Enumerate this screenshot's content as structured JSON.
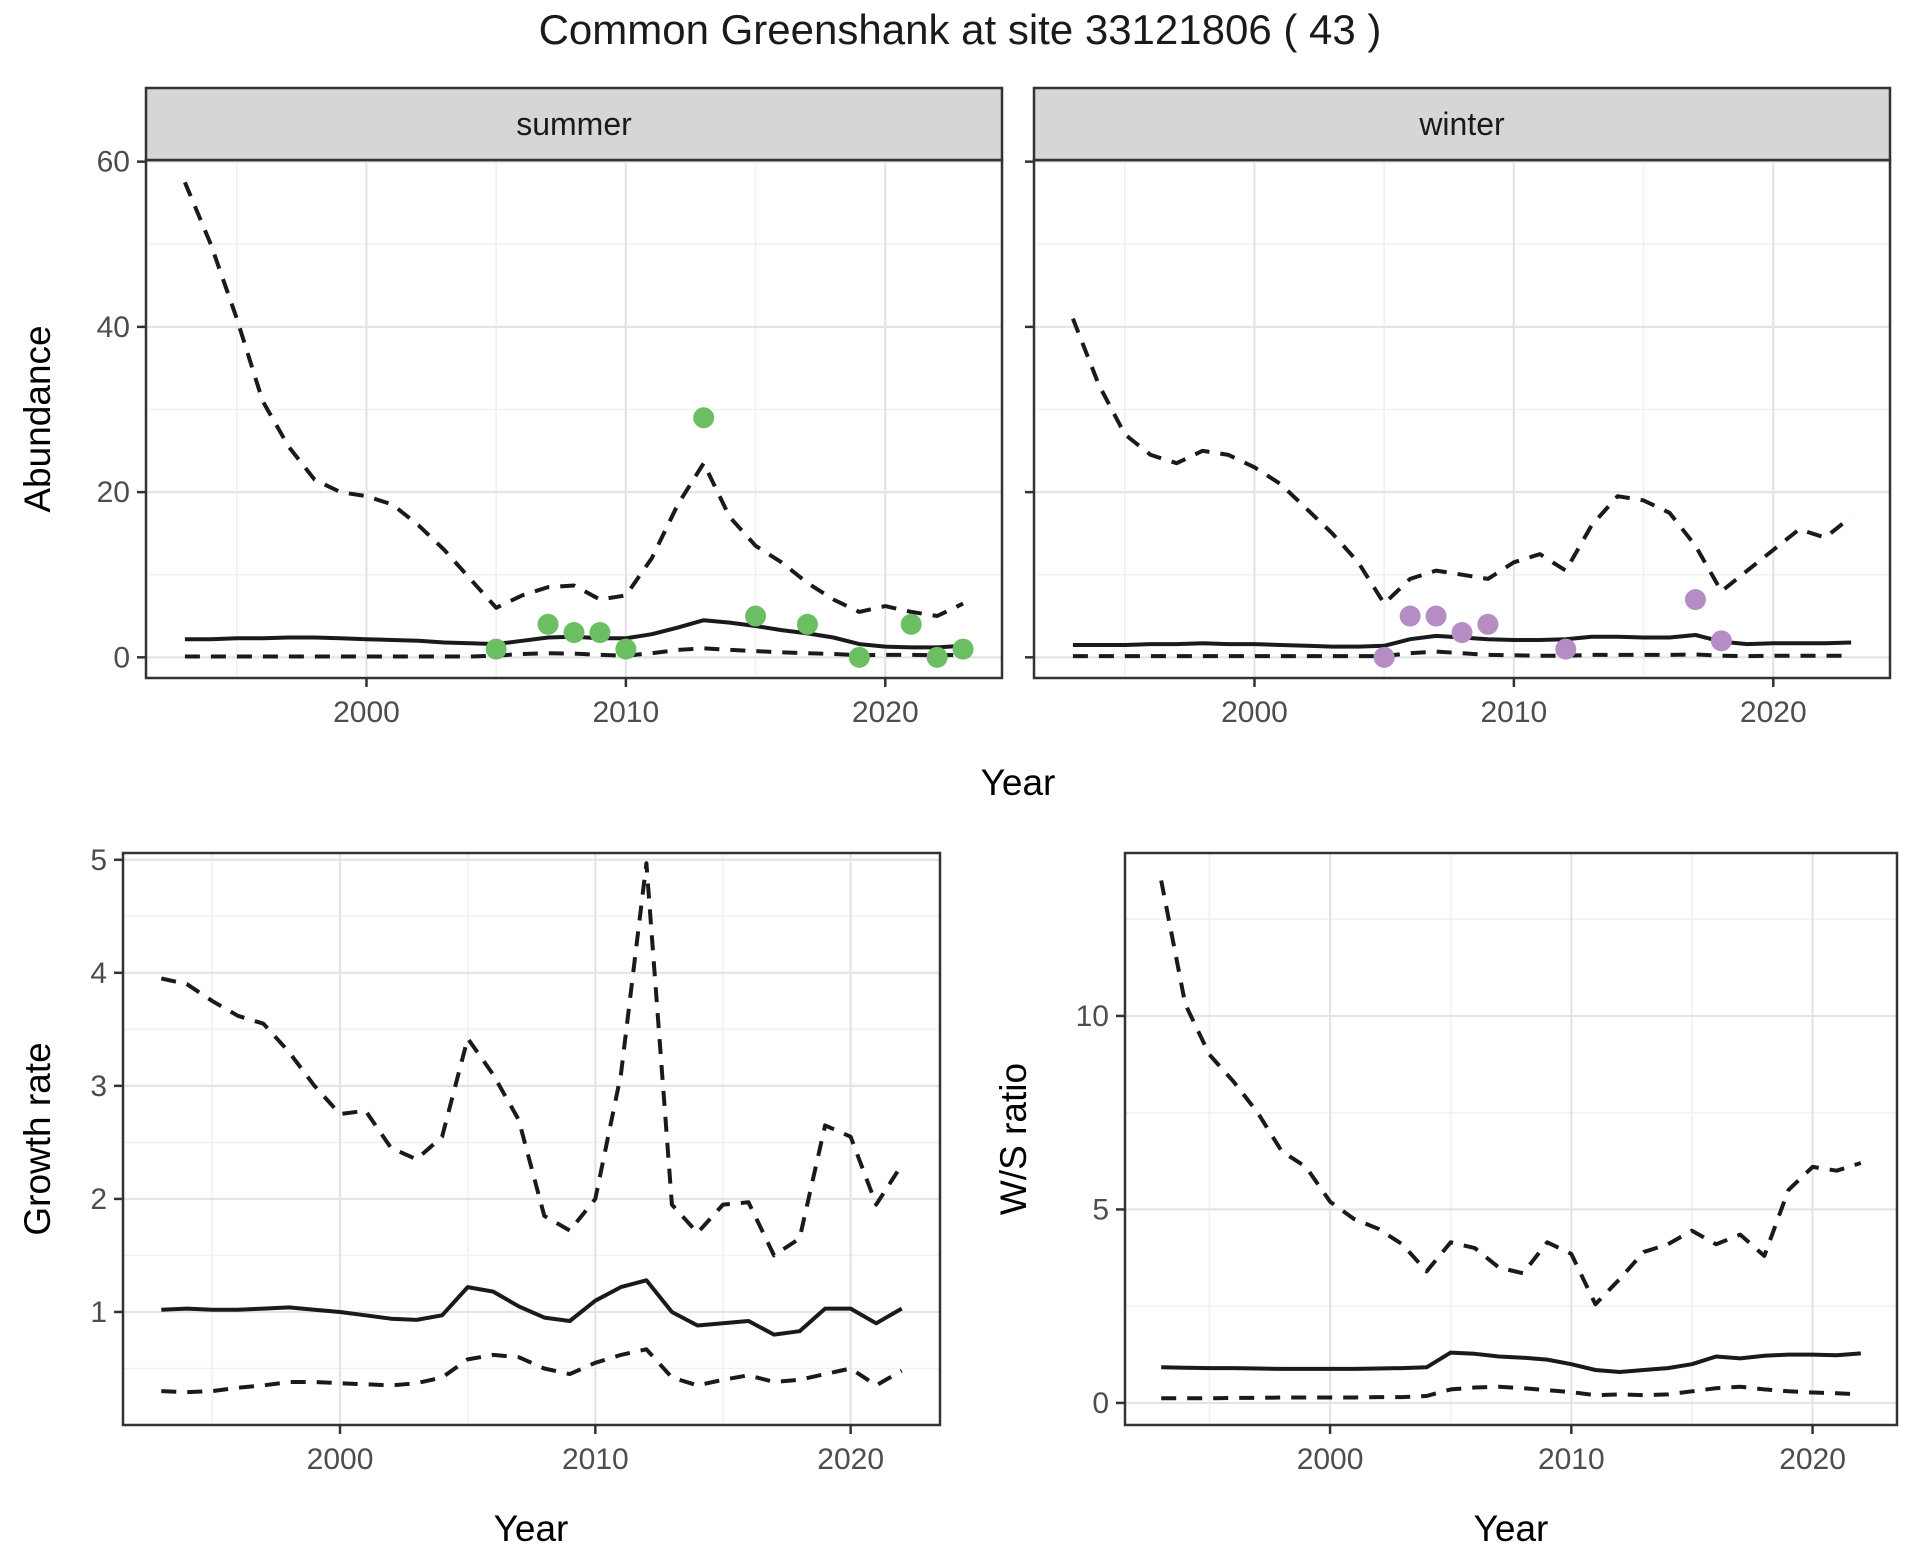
{
  "title": "Common Greenshank at site 33121806 ( 43 )",
  "facets": {
    "summer": "summer",
    "winter": "winter"
  },
  "axes": {
    "abundance": "Abundance",
    "year": "Year",
    "growth": "Growth rate",
    "ws": "W/S ratio"
  },
  "colors": {
    "summer_point": "#6CBE63",
    "winter_point": "#B58DC4",
    "line": "#1A1A1A",
    "strip_fill": "#D6D6D6",
    "panel_border": "#333333",
    "grid_major": "#E4E4E4",
    "grid_minor": "#F1F1F1",
    "tick_label": "#4D4D4D",
    "tick_mark": "#333333"
  },
  "chart_data": [
    {
      "type": "line",
      "id": "abundance-summer",
      "facet": "summer",
      "ylabel": "Abundance",
      "xlabel": "Year",
      "xlim": [
        1991.5,
        2024.5
      ],
      "ylim": [
        -2.5,
        60.2
      ],
      "x_ticks": [
        2000,
        2010,
        2020
      ],
      "x_minor": [
        1995,
        2005,
        2015
      ],
      "y_ticks": [
        0,
        20,
        40,
        60
      ],
      "y_minor": [
        10,
        30,
        50
      ],
      "grid": true,
      "years": [
        1993,
        1994,
        1995,
        1996,
        1997,
        1998,
        1999,
        2000,
        2001,
        2002,
        2003,
        2004,
        2005,
        2006,
        2007,
        2008,
        2009,
        2010,
        2011,
        2012,
        2013,
        2014,
        2015,
        2016,
        2017,
        2018,
        2019,
        2020,
        2021,
        2022,
        2023
      ],
      "series": [
        {
          "name": "upper_ci",
          "style": "dashed",
          "values": [
            57.5,
            50,
            41,
            31,
            25.5,
            21.5,
            20,
            19.5,
            18.5,
            16,
            13,
            9.5,
            6,
            7.5,
            8.5,
            8.7,
            7,
            7.5,
            12,
            18.5,
            23.5,
            17,
            13.5,
            11.5,
            9,
            7,
            5.5,
            6.2,
            5.5,
            5,
            6.5
          ]
        },
        {
          "name": "median",
          "style": "solid",
          "values": [
            2.2,
            2.2,
            2.3,
            2.3,
            2.4,
            2.4,
            2.3,
            2.2,
            2.1,
            2.0,
            1.8,
            1.7,
            1.6,
            2.0,
            2.4,
            2.5,
            2.3,
            2.3,
            2.8,
            3.6,
            4.5,
            4.2,
            3.8,
            3.3,
            2.9,
            2.4,
            1.6,
            1.3,
            1.2,
            1.2,
            1.4
          ]
        },
        {
          "name": "lower_ci",
          "style": "dashed",
          "values": [
            0.1,
            0.1,
            0.1,
            0.1,
            0.1,
            0.1,
            0.1,
            0.1,
            0.1,
            0.1,
            0.1,
            0.1,
            0.2,
            0.4,
            0.5,
            0.45,
            0.3,
            0.2,
            0.5,
            0.9,
            1.1,
            0.9,
            0.75,
            0.6,
            0.5,
            0.4,
            0.25,
            0.3,
            0.3,
            0.25,
            0.3
          ]
        }
      ],
      "observations": {
        "name": "summer-counts",
        "color": "#6CBE63",
        "points": [
          [
            2005,
            1
          ],
          [
            2007,
            4
          ],
          [
            2008,
            3
          ],
          [
            2009,
            3
          ],
          [
            2010,
            1
          ],
          [
            2013,
            29
          ],
          [
            2015,
            5
          ],
          [
            2017,
            4
          ],
          [
            2019,
            0
          ],
          [
            2021,
            4
          ],
          [
            2022,
            0
          ],
          [
            2023,
            1
          ]
        ]
      }
    },
    {
      "type": "line",
      "id": "abundance-winter",
      "facet": "winter",
      "ylabel": "Abundance",
      "xlabel": "Year",
      "xlim": [
        1991.5,
        2024.5
      ],
      "ylim": [
        -2.5,
        60.2
      ],
      "x_ticks": [
        2000,
        2010,
        2020
      ],
      "x_minor": [
        1995,
        2005,
        2015
      ],
      "y_ticks": [
        0,
        20,
        40,
        60
      ],
      "y_minor": [
        10,
        30,
        50
      ],
      "grid": true,
      "years": [
        1993,
        1994,
        1995,
        1996,
        1997,
        1998,
        1999,
        2000,
        2001,
        2002,
        2003,
        2004,
        2005,
        2006,
        2007,
        2008,
        2009,
        2010,
        2011,
        2012,
        2013,
        2014,
        2015,
        2016,
        2017,
        2018,
        2019,
        2020,
        2021,
        2022,
        2023
      ],
      "series": [
        {
          "name": "upper_ci",
          "style": "dashed",
          "values": [
            41,
            33,
            27,
            24.5,
            23.5,
            25,
            24.5,
            23,
            21,
            18,
            15,
            11.5,
            6.5,
            9.5,
            10.5,
            10,
            9.5,
            11.5,
            12.5,
            10.5,
            16,
            19.5,
            19,
            17.5,
            13.5,
            8,
            10.5,
            13,
            15.5,
            14.5,
            17
          ]
        },
        {
          "name": "median",
          "style": "solid",
          "values": [
            1.5,
            1.5,
            1.5,
            1.6,
            1.6,
            1.7,
            1.6,
            1.6,
            1.5,
            1.4,
            1.3,
            1.3,
            1.4,
            2.2,
            2.6,
            2.4,
            2.2,
            2.1,
            2.1,
            2.2,
            2.5,
            2.5,
            2.4,
            2.4,
            2.7,
            1.9,
            1.6,
            1.7,
            1.7,
            1.7,
            1.8
          ]
        },
        {
          "name": "lower_ci",
          "style": "dashed",
          "values": [
            0.15,
            0.15,
            0.15,
            0.15,
            0.15,
            0.15,
            0.15,
            0.15,
            0.15,
            0.15,
            0.15,
            0.15,
            0.15,
            0.5,
            0.7,
            0.5,
            0.3,
            0.25,
            0.2,
            0.2,
            0.3,
            0.3,
            0.3,
            0.3,
            0.35,
            0.2,
            0.15,
            0.2,
            0.2,
            0.2,
            0.2
          ]
        }
      ],
      "observations": {
        "name": "winter-counts",
        "color": "#B58DC4",
        "points": [
          [
            2005,
            0
          ],
          [
            2006,
            5
          ],
          [
            2007,
            5
          ],
          [
            2008,
            3
          ],
          [
            2009,
            4
          ],
          [
            2012,
            1
          ],
          [
            2017,
            7
          ],
          [
            2018,
            2
          ]
        ]
      }
    },
    {
      "type": "line",
      "id": "growth-rate",
      "ylabel": "Growth rate",
      "xlabel": "Year",
      "xlim": [
        1991.5,
        2023.5
      ],
      "ylim": [
        0.0,
        5.06
      ],
      "x_ticks": [
        2000,
        2010,
        2020
      ],
      "x_minor": [
        1995,
        2005,
        2015
      ],
      "y_ticks": [
        1,
        2,
        3,
        4,
        5
      ],
      "y_minor": [
        0.5,
        1.5,
        2.5,
        3.5,
        4.5
      ],
      "grid": true,
      "years": [
        1993,
        1994,
        1995,
        1996,
        1997,
        1998,
        1999,
        2000,
        2001,
        2002,
        2003,
        2004,
        2005,
        2006,
        2007,
        2008,
        2009,
        2010,
        2011,
        2012,
        2013,
        2014,
        2015,
        2016,
        2017,
        2018,
        2019,
        2020,
        2021,
        2022
      ],
      "series": [
        {
          "name": "upper_ci",
          "style": "dashed",
          "values": [
            3.95,
            3.9,
            3.75,
            3.62,
            3.55,
            3.3,
            3.0,
            2.75,
            2.78,
            2.45,
            2.35,
            2.55,
            3.42,
            3.1,
            2.7,
            1.85,
            1.72,
            2.0,
            3.1,
            4.97,
            1.95,
            1.7,
            1.95,
            1.97,
            1.5,
            1.65,
            2.65,
            2.55,
            1.95,
            2.3
          ]
        },
        {
          "name": "median",
          "style": "solid",
          "values": [
            1.02,
            1.03,
            1.02,
            1.02,
            1.03,
            1.04,
            1.02,
            1.0,
            0.97,
            0.94,
            0.93,
            0.97,
            1.22,
            1.18,
            1.05,
            0.95,
            0.92,
            1.1,
            1.22,
            1.28,
            1.0,
            0.88,
            0.9,
            0.92,
            0.8,
            0.83,
            1.03,
            1.03,
            0.9,
            1.03
          ]
        },
        {
          "name": "lower_ci",
          "style": "dashed",
          "values": [
            0.3,
            0.29,
            0.3,
            0.33,
            0.35,
            0.38,
            0.38,
            0.37,
            0.36,
            0.35,
            0.37,
            0.42,
            0.58,
            0.62,
            0.6,
            0.5,
            0.45,
            0.55,
            0.62,
            0.67,
            0.42,
            0.35,
            0.4,
            0.44,
            0.38,
            0.4,
            0.45,
            0.5,
            0.35,
            0.48
          ]
        }
      ]
    },
    {
      "type": "line",
      "id": "ws-ratio",
      "ylabel": "W/S ratio",
      "xlabel": "Year",
      "xlim": [
        1991.5,
        2023.5
      ],
      "ylim": [
        -0.57,
        14.21
      ],
      "x_ticks": [
        2000,
        2010,
        2020
      ],
      "x_minor": [
        1995,
        2005,
        2015
      ],
      "y_ticks": [
        0,
        5,
        10
      ],
      "y_minor": [
        2.5,
        7.5,
        12.5
      ],
      "grid": true,
      "years": [
        1993,
        1994,
        1995,
        1996,
        1997,
        1998,
        1999,
        2000,
        2001,
        2002,
        2003,
        2004,
        2005,
        2006,
        2007,
        2008,
        2009,
        2010,
        2011,
        2012,
        2013,
        2014,
        2015,
        2016,
        2017,
        2018,
        2019,
        2020,
        2021,
        2022
      ],
      "series": [
        {
          "name": "upper_ci",
          "style": "dashed",
          "values": [
            13.5,
            10.3,
            9.0,
            8.3,
            7.5,
            6.5,
            6.1,
            5.2,
            4.75,
            4.5,
            4.1,
            3.4,
            4.15,
            4.0,
            3.5,
            3.35,
            4.15,
            3.85,
            2.55,
            3.2,
            3.9,
            4.1,
            4.45,
            4.1,
            4.35,
            3.8,
            5.5,
            6.1,
            6.0,
            6.2
          ]
        },
        {
          "name": "median",
          "style": "solid",
          "values": [
            0.92,
            0.91,
            0.9,
            0.9,
            0.89,
            0.88,
            0.88,
            0.88,
            0.88,
            0.89,
            0.9,
            0.92,
            1.3,
            1.27,
            1.2,
            1.17,
            1.12,
            1.0,
            0.85,
            0.8,
            0.85,
            0.9,
            1.0,
            1.2,
            1.15,
            1.22,
            1.25,
            1.25,
            1.23,
            1.28
          ]
        },
        {
          "name": "lower_ci",
          "style": "dashed",
          "values": [
            0.12,
            0.12,
            0.12,
            0.13,
            0.13,
            0.14,
            0.14,
            0.14,
            0.14,
            0.15,
            0.15,
            0.18,
            0.35,
            0.4,
            0.42,
            0.38,
            0.33,
            0.28,
            0.2,
            0.22,
            0.2,
            0.22,
            0.3,
            0.38,
            0.42,
            0.35,
            0.3,
            0.27,
            0.25,
            0.22
          ]
        }
      ]
    }
  ]
}
